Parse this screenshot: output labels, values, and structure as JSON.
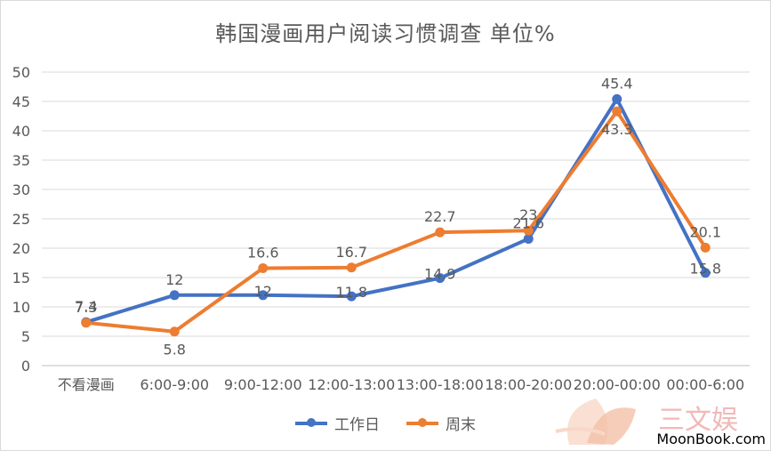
{
  "chart_data": {
    "type": "line",
    "title": "韩国漫画用户阅读习惯调查 单位%",
    "categories": [
      "不看漫画",
      "6:00-9:00",
      "9:00-12:00",
      "12:00-13:00",
      "13:00-18:00",
      "18:00-20:00",
      "20:00-00:00",
      "00:00-6:00"
    ],
    "series": [
      {
        "name": "工作日",
        "color": "#4472C4",
        "values": [
          7.4,
          12,
          12,
          11.8,
          14.9,
          21.6,
          45.4,
          15.8
        ]
      },
      {
        "name": "周末",
        "color": "#ED7D31",
        "values": [
          7.3,
          5.8,
          16.6,
          16.7,
          22.7,
          23,
          43.3,
          20.1
        ]
      }
    ],
    "ylim": [
      0,
      50
    ],
    "yticks": [
      0,
      5,
      10,
      15,
      20,
      25,
      30,
      35,
      40,
      45,
      50
    ],
    "grid": true,
    "legend": "bottom"
  },
  "watermark": {
    "logo_text": "三文娱",
    "site": "MoonBook.com"
  }
}
